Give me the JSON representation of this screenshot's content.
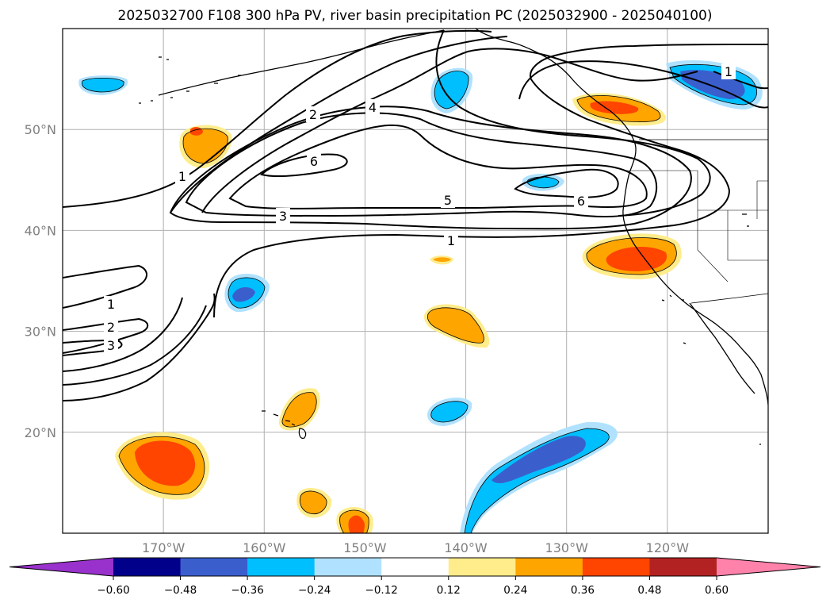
{
  "title": "2025032700 F108 300 hPa PV, river basin precipitation PC (2025032900 - 2025040100)",
  "map": {
    "lon_range": [
      -180,
      -110
    ],
    "lat_range": [
      10,
      60
    ],
    "lon_ticks": [
      {
        "value": -170,
        "label": "170°W"
      },
      {
        "value": -160,
        "label": "160°W"
      },
      {
        "value": -150,
        "label": "150°W"
      },
      {
        "value": -140,
        "label": "140°W"
      },
      {
        "value": -130,
        "label": "130°W"
      },
      {
        "value": -120,
        "label": "120°W"
      }
    ],
    "lat_ticks": [
      {
        "value": 20,
        "label": "20°N"
      },
      {
        "value": 30,
        "label": "30°N"
      },
      {
        "value": 40,
        "label": "40°N"
      },
      {
        "value": 50,
        "label": "50°N"
      }
    ],
    "grid": true
  },
  "contour_labels": [
    {
      "text": "1",
      "lon": -178,
      "lat": 42.3
    },
    {
      "text": "2",
      "lon": -168,
      "lat": 44.6
    },
    {
      "text": "4",
      "lon": -165,
      "lat": 47.2
    },
    {
      "text": "1",
      "lon": -162,
      "lat": 38.1
    },
    {
      "text": "2",
      "lon": -161,
      "lat": 36.2
    },
    {
      "text": "3",
      "lon": -160.8,
      "lat": 34.5
    }
  ],
  "colorbar": {
    "colors": [
      "#9932cc",
      "#00008b",
      "#3a5fcd",
      "#00bfff",
      "#b0e2ff",
      "#ffffff",
      "#ffec8b",
      "#ffa500",
      "#ff4500",
      "#b22222",
      "#ff82ab"
    ],
    "tick_labels": [
      "−0.60",
      "−0.48",
      "−0.36",
      "−0.24",
      "−0.12",
      "0.12",
      "0.24",
      "0.36",
      "0.48",
      "0.60"
    ]
  }
}
